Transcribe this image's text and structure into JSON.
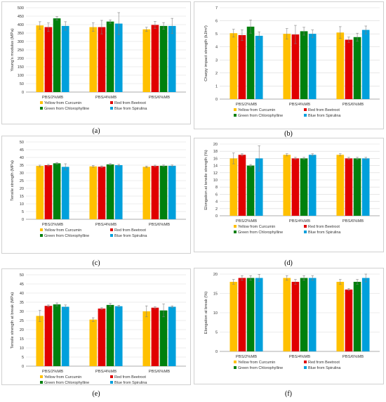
{
  "chart_data": [
    {
      "panel": "a",
      "caption": "(a)",
      "type": "bar",
      "categories": [
        "PBS/2%MB",
        "PBS/4%MB",
        "PBS/6%MB"
      ],
      "ylabel": "Young's modulus (MPa)",
      "ylim": [
        0,
        500
      ],
      "yticks": [
        "0",
        "50",
        "100",
        "150",
        "200",
        "250",
        "300",
        "350",
        "400",
        "450",
        "500"
      ],
      "grid": true,
      "series": [
        {
          "name": "Yellow from Curcumin",
          "color": "#FFC000",
          "values": [
            395,
            385,
            372
          ],
          "errors": [
            22,
            25,
            12
          ]
        },
        {
          "name": "Red from Beetroot",
          "color": "#E00000",
          "values": [
            385,
            385,
            398
          ],
          "errors": [
            25,
            40,
            20
          ]
        },
        {
          "name": "Green from Chlorophylline",
          "color": "#00800E",
          "values": [
            437,
            418,
            392
          ],
          "errors": [
            10,
            10,
            20
          ]
        },
        {
          "name": "Blue from Spirulina",
          "color": "#00A0DC",
          "values": [
            392,
            406,
            392
          ],
          "errors": [
            25,
            65,
            45
          ]
        }
      ]
    },
    {
      "panel": "b",
      "caption": "(b)",
      "type": "bar",
      "categories": [
        "PBS/2%MB",
        "PBS/4%MB",
        "PBS/6%MB"
      ],
      "ylabel": "Charpy impact strength (kJ/m²)",
      "ylim": [
        0,
        7
      ],
      "yticks": [
        "0",
        "1",
        "2",
        "3",
        "4",
        "5",
        "6",
        "7"
      ],
      "grid": true,
      "series": [
        {
          "name": "Yellow from Curcumin",
          "color": "#FFC000",
          "values": [
            5.05,
            5.0,
            5.1
          ],
          "errors": [
            0.3,
            0.4,
            0.45
          ]
        },
        {
          "name": "Red from Beetroot",
          "color": "#E00000",
          "values": [
            4.9,
            4.95,
            4.55
          ],
          "errors": [
            0.4,
            0.7,
            0.2
          ]
        },
        {
          "name": "Green from Chlorophylline",
          "color": "#00800E",
          "values": [
            5.55,
            5.2,
            4.75
          ],
          "errors": [
            0.5,
            0.3,
            0.3
          ]
        },
        {
          "name": "Blue from Spirulina",
          "color": "#00A0DC",
          "values": [
            4.85,
            5.0,
            5.3
          ],
          "errors": [
            0.3,
            0.3,
            0.3
          ]
        }
      ]
    },
    {
      "panel": "c",
      "caption": "(c)",
      "type": "bar",
      "categories": [
        "PBS/2%MB",
        "PBS/4%MB",
        "PBS/6%MB"
      ],
      "ylabel": "Tensile strength (MPa)",
      "ylim": [
        0,
        50
      ],
      "yticks": [
        "0",
        "5",
        "10",
        "15",
        "20",
        "25",
        "30",
        "35",
        "40",
        "45",
        "50"
      ],
      "grid": true,
      "series": [
        {
          "name": "Yellow from Curcumin",
          "color": "#FFC000",
          "values": [
            34.5,
            34.2,
            33.9
          ],
          "errors": [
            0.5,
            0.5,
            0.5
          ]
        },
        {
          "name": "Red from Beetroot",
          "color": "#E00000",
          "values": [
            35.0,
            34.0,
            34.5
          ],
          "errors": [
            0.5,
            0.5,
            0.5
          ]
        },
        {
          "name": "Green from Chlorophylline",
          "color": "#00800E",
          "values": [
            36.2,
            35.5,
            34.6
          ],
          "errors": [
            0.5,
            0.5,
            0.5
          ]
        },
        {
          "name": "Blue from Spirulina",
          "color": "#00A0DC",
          "values": [
            33.9,
            35.0,
            34.6
          ],
          "errors": [
            2.0,
            0.5,
            0.5
          ]
        }
      ]
    },
    {
      "panel": "d",
      "caption": "(d)",
      "type": "bar",
      "categories": [
        "PBS/2%MB",
        "PBS/4%MB",
        "PBS/6%MB"
      ],
      "ylabel": "Elongation at tensile strength (%)",
      "ylim": [
        0,
        20
      ],
      "yticks": [
        "0",
        "2",
        "4",
        "6",
        "8",
        "10",
        "12",
        "14",
        "16",
        "18",
        "20"
      ],
      "grid": true,
      "series": [
        {
          "name": "Yellow from Curcumin",
          "color": "#FFC000",
          "values": [
            16,
            17,
            17
          ],
          "errors": [
            1.5,
            0.3,
            0.3
          ]
        },
        {
          "name": "Red from Beetroot",
          "color": "#E00000",
          "values": [
            17,
            16,
            16
          ],
          "errors": [
            0.3,
            0.3,
            0.3
          ]
        },
        {
          "name": "Green from Chlorophylline",
          "color": "#00800E",
          "values": [
            14,
            16,
            16
          ],
          "errors": [
            0.3,
            0.3,
            0.3
          ]
        },
        {
          "name": "Blue from Spirulina",
          "color": "#00A0DC",
          "values": [
            16,
            17,
            16
          ],
          "errors": [
            3.5,
            0.3,
            0.3
          ]
        }
      ]
    },
    {
      "panel": "e",
      "caption": "(e)",
      "type": "bar",
      "categories": [
        "PBS/2%MB",
        "PBS/4%MB",
        "PBS/6%MB"
      ],
      "ylabel": "Tensile strength at break (MPa)",
      "ylim": [
        0,
        50
      ],
      "yticks": [
        "0",
        "5",
        "10",
        "15",
        "20",
        "25",
        "30",
        "35",
        "40",
        "45",
        "50"
      ],
      "grid": true,
      "series": [
        {
          "name": "Yellow from Curcumin",
          "color": "#FFC000",
          "values": [
            27.5,
            25.5,
            30.0
          ],
          "errors": [
            3.0,
            1.0,
            3.0
          ]
        },
        {
          "name": "Red from Beetroot",
          "color": "#E00000",
          "values": [
            33.0,
            31.5,
            32.0
          ],
          "errors": [
            0.5,
            0.5,
            0.5
          ]
        },
        {
          "name": "Green from Chlorophylline",
          "color": "#00800E",
          "values": [
            33.8,
            33.5,
            30.5
          ],
          "errors": [
            0.8,
            0.8,
            3.5
          ]
        },
        {
          "name": "Blue from Spirulina",
          "color": "#00A0DC",
          "values": [
            32.5,
            32.8,
            32.5
          ],
          "errors": [
            1.0,
            0.5,
            0.5
          ]
        }
      ]
    },
    {
      "panel": "f",
      "caption": "(f)",
      "type": "bar",
      "categories": [
        "PBS/2%MB",
        "PBS/4%MB",
        "PBS/6%MB"
      ],
      "ylabel": "Elongation at break (%)",
      "ylim": [
        0,
        20
      ],
      "yticks": [
        "0",
        "5",
        "10",
        "15",
        "20"
      ],
      "grid": true,
      "series": [
        {
          "name": "Yellow from Curcumin",
          "color": "#FFC000",
          "values": [
            18,
            19,
            18
          ],
          "errors": [
            0.6,
            0.6,
            0.6
          ]
        },
        {
          "name": "Red from Beetroot",
          "color": "#E00000",
          "values": [
            19,
            18,
            16
          ],
          "errors": [
            0.6,
            0.6,
            0.3
          ]
        },
        {
          "name": "Green from Chlorophylline",
          "color": "#00800E",
          "values": [
            19,
            19,
            18
          ],
          "errors": [
            0.6,
            0.6,
            0.6
          ]
        },
        {
          "name": "Blue from Spirulina",
          "color": "#00A0DC",
          "values": [
            19,
            19,
            19
          ],
          "errors": [
            0.9,
            0.6,
            1.0
          ]
        }
      ]
    }
  ]
}
